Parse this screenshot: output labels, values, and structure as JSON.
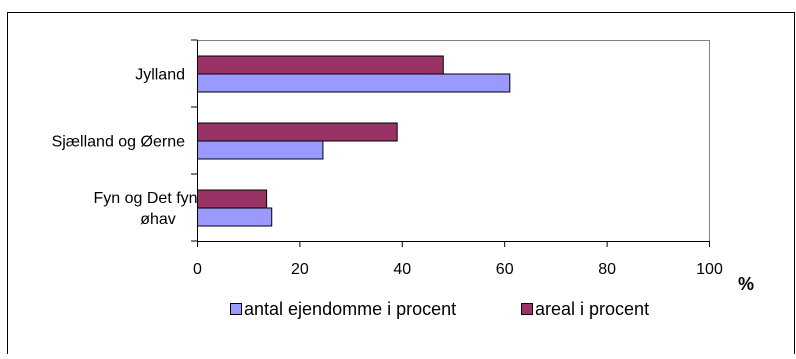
{
  "chart_data": {
    "type": "bar",
    "orientation": "horizontal",
    "categories": [
      "Jylland",
      "Sjælland og Øerne",
      "Fyn og Det fynske øhav"
    ],
    "category_label_lines": [
      [
        "Jylland"
      ],
      [
        "Sjælland og Øerne"
      ],
      [
        "Fyn og Det fynske",
        "øhav"
      ]
    ],
    "series": [
      {
        "name": "antal ejendomme i procent",
        "values": [
          61,
          24.5,
          14.5
        ],
        "color": "#9999FF"
      },
      {
        "name": "areal i procent",
        "values": [
          48,
          39,
          13.5
        ],
        "color": "#993366"
      }
    ],
    "xlim": [
      0,
      100
    ],
    "xticks": [
      0,
      20,
      40,
      60,
      80,
      100
    ],
    "xlabel": "%",
    "grid": false,
    "legend_position": "bottom"
  }
}
